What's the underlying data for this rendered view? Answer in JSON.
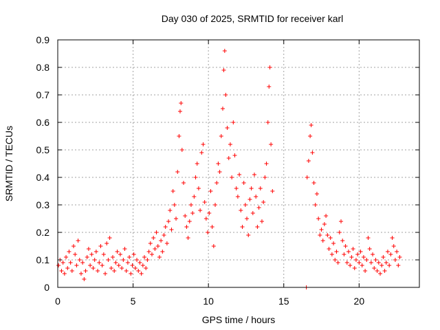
{
  "chart_data": {
    "type": "scatter",
    "title": "Day 030 of 2025, SRMTID for receiver karl",
    "xlabel": "GPS time / hours",
    "ylabel": "SRMTID / TECUs",
    "xlim": [
      0,
      24
    ],
    "ylim": [
      0,
      0.9
    ],
    "xticks": [
      0,
      5,
      10,
      15,
      20
    ],
    "yticks": [
      0,
      0.1,
      0.2,
      0.3,
      0.4,
      0.5,
      0.6,
      0.7,
      0.8,
      0.9
    ],
    "xtick_labels": [
      "0",
      "5",
      "10",
      "15",
      "20"
    ],
    "ytick_labels": [
      "0",
      "0.1",
      "0.2",
      "0.3",
      "0.4",
      "0.5",
      "0.6",
      "0.7",
      "0.8",
      "0.9"
    ],
    "grid": true,
    "marker": "plus",
    "series_color": "#ff0000",
    "series": [
      {
        "name": "SRMTID",
        "points": [
          [
            0.05,
            0.08
          ],
          [
            0.15,
            0.1
          ],
          [
            0.25,
            0.06
          ],
          [
            0.35,
            0.09
          ],
          [
            0.45,
            0.05
          ],
          [
            0.55,
            0.11
          ],
          [
            0.65,
            0.07
          ],
          [
            0.75,
            0.13
          ],
          [
            0.85,
            0.09
          ],
          [
            0.95,
            0.06
          ],
          [
            1.05,
            0.15
          ],
          [
            1.15,
            0.12
          ],
          [
            1.25,
            0.08
          ],
          [
            1.35,
            0.17
          ],
          [
            1.45,
            0.1
          ],
          [
            1.55,
            0.05
          ],
          [
            1.65,
            0.09
          ],
          [
            1.75,
            0.03
          ],
          [
            1.85,
            0.06
          ],
          [
            1.95,
            0.11
          ],
          [
            2.05,
            0.14
          ],
          [
            2.15,
            0.08
          ],
          [
            2.25,
            0.12
          ],
          [
            2.35,
            0.07
          ],
          [
            2.45,
            0.1
          ],
          [
            2.55,
            0.13
          ],
          [
            2.65,
            0.06
          ],
          [
            2.75,
            0.09
          ],
          [
            2.85,
            0.15
          ],
          [
            2.95,
            0.08
          ],
          [
            3.05,
            0.12
          ],
          [
            3.15,
            0.05
          ],
          [
            3.25,
            0.16
          ],
          [
            3.35,
            0.1
          ],
          [
            3.45,
            0.18
          ],
          [
            3.55,
            0.07
          ],
          [
            3.65,
            0.11
          ],
          [
            3.75,
            0.06
          ],
          [
            3.85,
            0.09
          ],
          [
            3.95,
            0.13
          ],
          [
            4.05,
            0.08
          ],
          [
            4.15,
            0.12
          ],
          [
            4.25,
            0.07
          ],
          [
            4.35,
            0.1
          ],
          [
            4.45,
            0.14
          ],
          [
            4.55,
            0.06
          ],
          [
            4.65,
            0.09
          ],
          [
            4.75,
            0.11
          ],
          [
            4.85,
            0.05
          ],
          [
            4.95,
            0.08
          ],
          [
            5.05,
            0.12
          ],
          [
            5.15,
            0.07
          ],
          [
            5.25,
            0.1
          ],
          [
            5.35,
            0.06
          ],
          [
            5.45,
            0.09
          ],
          [
            5.55,
            0.05
          ],
          [
            5.65,
            0.08
          ],
          [
            5.75,
            0.11
          ],
          [
            5.85,
            0.07
          ],
          [
            5.95,
            0.1
          ],
          [
            6.05,
            0.13
          ],
          [
            6.15,
            0.16
          ],
          [
            6.25,
            0.12
          ],
          [
            6.35,
            0.18
          ],
          [
            6.45,
            0.14
          ],
          [
            6.55,
            0.2
          ],
          [
            6.65,
            0.15
          ],
          [
            6.75,
            0.11
          ],
          [
            6.85,
            0.17
          ],
          [
            6.95,
            0.13
          ],
          [
            7.05,
            0.19
          ],
          [
            7.15,
            0.22
          ],
          [
            7.25,
            0.16
          ],
          [
            7.35,
            0.24
          ],
          [
            7.45,
            0.28
          ],
          [
            7.55,
            0.21
          ],
          [
            7.65,
            0.35
          ],
          [
            7.75,
            0.3
          ],
          [
            7.85,
            0.25
          ],
          [
            7.95,
            0.42
          ],
          [
            8.05,
            0.55
          ],
          [
            8.12,
            0.64
          ],
          [
            8.18,
            0.67
          ],
          [
            8.25,
            0.5
          ],
          [
            8.35,
            0.38
          ],
          [
            8.45,
            0.26
          ],
          [
            8.55,
            0.22
          ],
          [
            8.65,
            0.18
          ],
          [
            8.75,
            0.24
          ],
          [
            8.85,
            0.3
          ],
          [
            8.95,
            0.27
          ],
          [
            9.05,
            0.33
          ],
          [
            9.15,
            0.4
          ],
          [
            9.25,
            0.45
          ],
          [
            9.35,
            0.36
          ],
          [
            9.45,
            0.28
          ],
          [
            9.55,
            0.49
          ],
          [
            9.65,
            0.52
          ],
          [
            9.75,
            0.31
          ],
          [
            9.85,
            0.25
          ],
          [
            9.95,
            0.2
          ],
          [
            10.05,
            0.27
          ],
          [
            10.15,
            0.35
          ],
          [
            10.25,
            0.22
          ],
          [
            10.35,
            0.15
          ],
          [
            10.45,
            0.3
          ],
          [
            10.55,
            0.38
          ],
          [
            10.65,
            0.45
          ],
          [
            10.75,
            0.42
          ],
          [
            10.85,
            0.55
          ],
          [
            10.95,
            0.65
          ],
          [
            11.02,
            0.79
          ],
          [
            11.08,
            0.86
          ],
          [
            11.15,
            0.7
          ],
          [
            11.25,
            0.58
          ],
          [
            11.35,
            0.47
          ],
          [
            11.45,
            0.52
          ],
          [
            11.55,
            0.4
          ],
          [
            11.65,
            0.6
          ],
          [
            11.75,
            0.48
          ],
          [
            11.85,
            0.36
          ],
          [
            11.95,
            0.33
          ],
          [
            12.05,
            0.41
          ],
          [
            12.15,
            0.28
          ],
          [
            12.25,
            0.22
          ],
          [
            12.35,
            0.38
          ],
          [
            12.45,
            0.3
          ],
          [
            12.55,
            0.25
          ],
          [
            12.65,
            0.19
          ],
          [
            12.75,
            0.32
          ],
          [
            12.85,
            0.36
          ],
          [
            12.95,
            0.27
          ],
          [
            13.05,
            0.41
          ],
          [
            13.15,
            0.33
          ],
          [
            13.25,
            0.22
          ],
          [
            13.35,
            0.29
          ],
          [
            13.45,
            0.36
          ],
          [
            13.55,
            0.24
          ],
          [
            13.65,
            0.31
          ],
          [
            13.75,
            0.4
          ],
          [
            13.85,
            0.45
          ],
          [
            13.95,
            0.6
          ],
          [
            14.02,
            0.73
          ],
          [
            14.08,
            0.8
          ],
          [
            14.15,
            0.52
          ],
          [
            14.25,
            0.35
          ],
          [
            16.55,
            0.4
          ],
          [
            16.65,
            0.46
          ],
          [
            16.75,
            0.55
          ],
          [
            16.82,
            0.59
          ],
          [
            16.9,
            0.49
          ],
          [
            17.0,
            0.38
          ],
          [
            17.1,
            0.3
          ],
          [
            17.2,
            0.34
          ],
          [
            17.3,
            0.25
          ],
          [
            17.4,
            0.19
          ],
          [
            17.5,
            0.21
          ],
          [
            17.6,
            0.17
          ],
          [
            17.7,
            0.23
          ],
          [
            17.8,
            0.26
          ],
          [
            17.9,
            0.19
          ],
          [
            18.0,
            0.14
          ],
          [
            18.1,
            0.18
          ],
          [
            18.2,
            0.12
          ],
          [
            18.3,
            0.16
          ],
          [
            18.4,
            0.1
          ],
          [
            18.5,
            0.13
          ],
          [
            18.6,
            0.09
          ],
          [
            18.7,
            0.2
          ],
          [
            18.8,
            0.24
          ],
          [
            18.9,
            0.17
          ],
          [
            19.0,
            0.12
          ],
          [
            19.1,
            0.15
          ],
          [
            19.2,
            0.09
          ],
          [
            19.3,
            0.13
          ],
          [
            19.4,
            0.08
          ],
          [
            19.5,
            0.11
          ],
          [
            19.6,
            0.14
          ],
          [
            19.7,
            0.07
          ],
          [
            19.8,
            0.1
          ],
          [
            19.9,
            0.12
          ],
          [
            20.0,
            0.09
          ],
          [
            20.1,
            0.13
          ],
          [
            20.2,
            0.08
          ],
          [
            20.3,
            0.11
          ],
          [
            20.4,
            0.06
          ],
          [
            20.5,
            0.1
          ],
          [
            20.6,
            0.18
          ],
          [
            20.7,
            0.14
          ],
          [
            20.8,
            0.09
          ],
          [
            20.9,
            0.12
          ],
          [
            21.0,
            0.07
          ],
          [
            21.1,
            0.1
          ],
          [
            21.2,
            0.06
          ],
          [
            21.3,
            0.09
          ],
          [
            21.4,
            0.05
          ],
          [
            21.5,
            0.08
          ],
          [
            21.6,
            0.11
          ],
          [
            21.7,
            0.06
          ],
          [
            21.8,
            0.09
          ],
          [
            21.9,
            0.13
          ],
          [
            22.0,
            0.08
          ],
          [
            22.1,
            0.12
          ],
          [
            22.2,
            0.18
          ],
          [
            22.3,
            0.15
          ],
          [
            22.4,
            0.1
          ],
          [
            22.5,
            0.13
          ],
          [
            22.6,
            0.08
          ],
          [
            22.7,
            0.11
          ],
          [
            16.5,
            0.0
          ]
        ]
      }
    ]
  }
}
